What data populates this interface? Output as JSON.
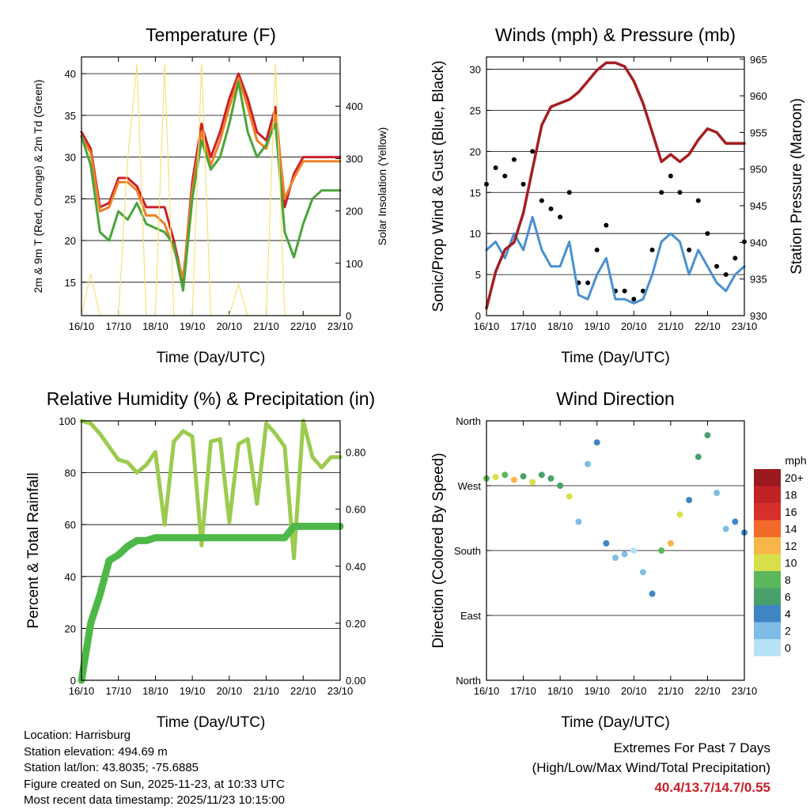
{
  "colors": {
    "temp2m": "#c8202a",
    "temp9m": "#f07f23",
    "dewpoint": "#4aa43a",
    "solar": "#f5e17a",
    "gust": "#000000",
    "wind": "#4a90cf",
    "pressure": "#a51e22",
    "rh": "#9ccb4e",
    "precip": "#4db847",
    "speed_scale": [
      "#b7e1f7",
      "#7fbde6",
      "#3f85c4",
      "#4aa06a",
      "#5cb85c",
      "#d7e04a",
      "#f7b64a",
      "#f06a2a",
      "#d7302a",
      "#c02226",
      "#9a1a1e"
    ]
  },
  "x_ticks": [
    "16/10",
    "17/10",
    "18/10",
    "19/10",
    "20/10",
    "21/10",
    "22/10",
    "23/10"
  ],
  "x_label": "Time (Day/UTC)",
  "chart_data": [
    {
      "type": "line",
      "title": "Temperature (F)",
      "ylabel": "2m & 9m T (Red, Orange) & 2m Td (Green)",
      "ylabel_right": "Solar Insolation (Yellow)",
      "xlabel": "Time (Day/UTC)",
      "x": [
        0,
        0.25,
        0.5,
        0.75,
        1,
        1.25,
        1.5,
        1.75,
        2,
        2.25,
        2.5,
        2.75,
        3,
        3.25,
        3.5,
        3.75,
        4,
        4.25,
        4.5,
        4.75,
        5,
        5.25,
        5.5,
        5.75,
        6,
        6.25,
        6.5,
        6.75,
        7
      ],
      "ylim": [
        11,
        42
      ],
      "yticks": [
        15,
        20,
        25,
        30,
        35,
        40
      ],
      "y2lim": [
        0,
        494
      ],
      "y2ticks": [
        0,
        100,
        200,
        300,
        400
      ],
      "series": [
        {
          "name": "2m T",
          "color_key": "temp2m",
          "values": [
            33,
            31,
            24,
            24.5,
            27.5,
            27.5,
            26.5,
            24,
            24,
            24,
            20,
            15,
            27,
            34,
            30,
            33,
            37,
            40,
            37,
            33,
            32,
            36,
            24,
            28,
            30,
            30,
            30,
            30,
            30
          ]
        },
        {
          "name": "9m T",
          "color_key": "temp9m",
          "values": [
            32.5,
            30.5,
            23.5,
            24,
            27,
            27,
            26,
            23,
            23,
            22,
            19,
            15.5,
            26,
            33,
            29,
            32,
            36,
            39.5,
            36,
            32,
            31,
            35,
            25,
            27.5,
            29.5,
            29.5,
            29.5,
            29.5,
            29.5
          ]
        },
        {
          "name": "2m Td",
          "color_key": "dewpoint",
          "values": [
            32.5,
            29,
            21,
            20,
            23.5,
            22.5,
            24.5,
            22,
            21.5,
            21,
            19.5,
            14,
            25,
            32,
            28.5,
            30,
            34,
            39,
            33,
            30,
            31.5,
            34,
            21,
            18,
            22,
            25,
            26,
            26,
            26
          ]
        },
        {
          "name": "Solar",
          "color_key": "solar",
          "axis": "right",
          "values": [
            0,
            80,
            0,
            0,
            0,
            300,
            480,
            0,
            0,
            480,
            0,
            0,
            0,
            480,
            0,
            0,
            0,
            60,
            0,
            0,
            0,
            480,
            0,
            0,
            0,
            0,
            0,
            0,
            0
          ]
        }
      ]
    },
    {
      "type": "line",
      "title": "Winds (mph) & Pressure (mb)",
      "ylabel": "Sonic/Prop Wind & Gust (Blue, Black)",
      "ylabel_right": "Station Pressure (Maroon)",
      "xlabel": "Time (Day/UTC)",
      "x": [
        0,
        0.25,
        0.5,
        0.75,
        1,
        1.25,
        1.5,
        1.75,
        2,
        2.25,
        2.5,
        2.75,
        3,
        3.25,
        3.5,
        3.75,
        4,
        4.25,
        4.5,
        4.75,
        5,
        5.25,
        5.5,
        5.75,
        6,
        6.25,
        6.5,
        6.75,
        7
      ],
      "ylim": [
        0,
        31.5
      ],
      "yticks": [
        0,
        5,
        10,
        15,
        20,
        25,
        30
      ],
      "y2lim": [
        930,
        965.3
      ],
      "y2ticks": [
        930,
        935,
        940,
        945,
        950,
        955,
        960,
        965
      ],
      "series": [
        {
          "name": "Gust",
          "color_key": "gust",
          "values": [
            16,
            18,
            17,
            19,
            16,
            20,
            14,
            13,
            12,
            15,
            4,
            4,
            8,
            11,
            3,
            3,
            2,
            3,
            8,
            15,
            17,
            15,
            8,
            14,
            10,
            6,
            5,
            7,
            9
          ]
        },
        {
          "name": "Wind",
          "color_key": "wind",
          "values": [
            8,
            9,
            7,
            10,
            8,
            12,
            8,
            6,
            6,
            9,
            2.5,
            2,
            5,
            7,
            2,
            2,
            1.5,
            2,
            5,
            9,
            10,
            9,
            5,
            8,
            6,
            4,
            3,
            5,
            6
          ]
        },
        {
          "name": "Pressure",
          "color_key": "pressure",
          "axis": "right",
          "values": [
            931,
            936,
            939,
            940,
            944,
            950,
            956,
            958.5,
            959,
            959.5,
            960.5,
            962,
            963.5,
            964.5,
            964.5,
            964,
            962,
            959,
            955,
            951,
            952,
            951,
            952,
            954,
            955.5,
            955,
            953.5,
            953.5,
            953.5
          ]
        }
      ]
    },
    {
      "type": "line",
      "title": "Relative Humidity (%) & Precipitation (in)",
      "ylabel": "Percent & Total Rainfall",
      "xlabel": "Time (Day/UTC)",
      "x": [
        0,
        0.25,
        0.5,
        0.75,
        1,
        1.25,
        1.5,
        1.75,
        2,
        2.25,
        2.5,
        2.75,
        3,
        3.25,
        3.5,
        3.75,
        4,
        4.25,
        4.5,
        4.75,
        5,
        5.25,
        5.5,
        5.75,
        6,
        6.25,
        6.5,
        6.75,
        7
      ],
      "ylim": [
        0,
        100
      ],
      "yticks": [
        0,
        20,
        40,
        60,
        80,
        100
      ],
      "y2lim": [
        0,
        0.91
      ],
      "y2ticks": [
        0.0,
        0.2,
        0.4,
        0.6,
        0.8
      ],
      "series": [
        {
          "name": "RH",
          "color_key": "rh",
          "values": [
            100,
            99,
            95,
            90,
            85,
            84,
            80,
            83,
            88,
            60,
            92,
            96,
            94,
            52,
            92,
            93,
            61,
            91,
            93,
            68,
            99,
            95,
            90,
            47,
            100,
            86,
            82,
            86,
            86
          ]
        },
        {
          "name": "Precipitation",
          "color_key": "precip",
          "axis": "right",
          "values": [
            0,
            0.2,
            0.3,
            0.42,
            0.44,
            0.47,
            0.49,
            0.49,
            0.5,
            0.5,
            0.5,
            0.5,
            0.5,
            0.5,
            0.5,
            0.5,
            0.5,
            0.5,
            0.5,
            0.5,
            0.5,
            0.5,
            0.5,
            0.54,
            0.54,
            0.54,
            0.54,
            0.54,
            0.54
          ]
        }
      ]
    },
    {
      "type": "scatter",
      "title": "Wind Direction",
      "ylabel": "Direction (Colored By Speed)",
      "xlabel": "Time (Day/UTC)",
      "x": [
        0,
        0.25,
        0.5,
        0.75,
        1,
        1.25,
        1.5,
        1.75,
        2,
        2.25,
        2.5,
        2.75,
        3,
        3.25,
        3.5,
        3.75,
        4,
        4.25,
        4.5,
        4.75,
        5,
        5.25,
        5.5,
        5.75,
        6,
        6.25,
        6.5,
        6.75,
        7
      ],
      "ylim": [
        0,
        360
      ],
      "ytick_values": [
        0,
        90,
        180,
        270,
        360
      ],
      "yticks": [
        "North",
        "East",
        "South",
        "West",
        "North"
      ],
      "series": [
        {
          "name": "Direction",
          "values": [
            280,
            282,
            285,
            278,
            283,
            275,
            285,
            280,
            270,
            255,
            220,
            300,
            330,
            190,
            170,
            175,
            180,
            150,
            120,
            180,
            190,
            230,
            250,
            310,
            340,
            260,
            210,
            220,
            205
          ]
        },
        {
          "name": "Speed",
          "values": [
            8,
            10,
            9,
            12,
            7,
            11,
            6,
            7,
            6,
            10,
            3,
            2,
            4,
            5,
            2,
            2,
            1.5,
            2,
            4,
            9,
            12,
            10,
            5,
            6,
            7,
            3,
            3,
            4,
            5
          ]
        }
      ],
      "legend_title": "mph",
      "legend_labels": [
        "20+",
        "18",
        "16",
        "14",
        "12",
        "10",
        "8",
        "6",
        "4",
        "2",
        "0"
      ]
    }
  ],
  "info": {
    "location": "Location: Harrisburg",
    "elevation": "Station elevation: 494.69 m",
    "latlon": "Station lat/lon: 43.8035; -75.6885",
    "created": "Figure created on Sun, 2025-11-23, at 10:33 UTC",
    "timestamp": "Most recent data timestamp: 2025/11/23 10:15:00"
  },
  "extremes": {
    "title": "Extremes For Past 7 Days",
    "subtitle": "(High/Low/Max Wind/Total Precipitation)",
    "values": "40.4/13.7/14.7/0.55"
  }
}
